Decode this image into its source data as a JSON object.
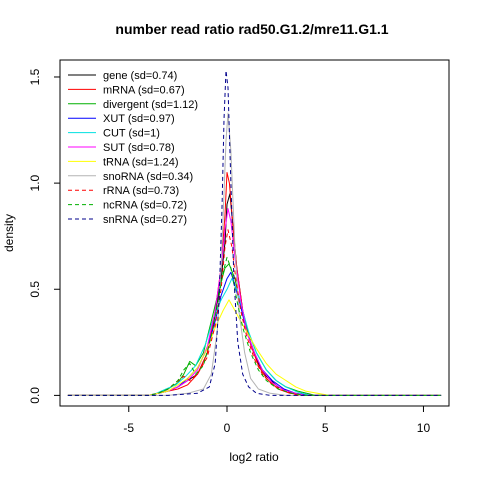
{
  "chart_data": {
    "type": "line",
    "title": "number read ratio rad50.G1.2/mre11.G1.1",
    "xlabel": "log2 ratio",
    "ylabel": "density",
    "xlim": [
      -8.5,
      11.3
    ],
    "ylim": [
      -0.05,
      1.58
    ],
    "x_ticks": [
      -5,
      0,
      5,
      10
    ],
    "x_tick_labels": [
      "-5",
      "0",
      "5",
      "10"
    ],
    "y_ticks": [
      0.0,
      0.5,
      1.0,
      1.5
    ],
    "y_tick_labels": [
      "0.0",
      "0.5",
      "1.0",
      "1.5"
    ],
    "grid": false,
    "legend_position": "top-left",
    "series": [
      {
        "name": "gene (sd=0.74)",
        "color": "#000000",
        "dash": "solid",
        "points": [
          [
            -8.1,
            0
          ],
          [
            -4,
            0
          ],
          [
            -3.5,
            0.01
          ],
          [
            -3,
            0.02
          ],
          [
            -2.5,
            0.04
          ],
          [
            -2,
            0.07
          ],
          [
            -1.5,
            0.1
          ],
          [
            -1,
            0.2
          ],
          [
            -0.6,
            0.38
          ],
          [
            -0.3,
            0.55
          ],
          [
            -0.1,
            0.72
          ],
          [
            0,
            0.9
          ],
          [
            0.15,
            0.95
          ],
          [
            0.3,
            0.8
          ],
          [
            0.5,
            0.6
          ],
          [
            0.8,
            0.4
          ],
          [
            1.2,
            0.25
          ],
          [
            1.6,
            0.15
          ],
          [
            2,
            0.09
          ],
          [
            2.6,
            0.04
          ],
          [
            3.2,
            0.015
          ],
          [
            4,
            0
          ],
          [
            10.9,
            0
          ]
        ]
      },
      {
        "name": "mRNA (sd=0.67)",
        "color": "#ff0000",
        "dash": "solid",
        "points": [
          [
            -8.1,
            0
          ],
          [
            -4,
            0
          ],
          [
            -3.5,
            0.01
          ],
          [
            -3,
            0.02
          ],
          [
            -2.5,
            0.03
          ],
          [
            -2,
            0.05
          ],
          [
            -1.5,
            0.1
          ],
          [
            -1,
            0.2
          ],
          [
            -0.6,
            0.4
          ],
          [
            -0.3,
            0.6
          ],
          [
            -0.1,
            0.85
          ],
          [
            0,
            1.05
          ],
          [
            0.12,
            1.0
          ],
          [
            0.3,
            0.8
          ],
          [
            0.5,
            0.6
          ],
          [
            0.8,
            0.4
          ],
          [
            1.2,
            0.24
          ],
          [
            1.6,
            0.14
          ],
          [
            2,
            0.08
          ],
          [
            2.6,
            0.03
          ],
          [
            3.2,
            0.01
          ],
          [
            4,
            0
          ],
          [
            10.9,
            0
          ]
        ]
      },
      {
        "name": "divergent (sd=1.12)",
        "color": "#00b000",
        "dash": "solid",
        "points": [
          [
            -8.1,
            0
          ],
          [
            -4,
            0
          ],
          [
            -3.5,
            0.01
          ],
          [
            -3,
            0.03
          ],
          [
            -2.5,
            0.06
          ],
          [
            -2.2,
            0.1
          ],
          [
            -1.9,
            0.16
          ],
          [
            -1.6,
            0.14
          ],
          [
            -1.2,
            0.2
          ],
          [
            -0.8,
            0.35
          ],
          [
            -0.4,
            0.5
          ],
          [
            -0.1,
            0.6
          ],
          [
            0.1,
            0.62
          ],
          [
            0.4,
            0.55
          ],
          [
            0.7,
            0.42
          ],
          [
            1,
            0.32
          ],
          [
            1.5,
            0.2
          ],
          [
            2,
            0.12
          ],
          [
            2.5,
            0.07
          ],
          [
            3,
            0.04
          ],
          [
            3.6,
            0.02
          ],
          [
            4.5,
            0
          ],
          [
            10.9,
            0
          ]
        ]
      },
      {
        "name": "XUT (sd=0.97)",
        "color": "#0000ff",
        "dash": "solid",
        "points": [
          [
            -8.1,
            0
          ],
          [
            -4,
            0
          ],
          [
            -3.5,
            0.01
          ],
          [
            -3,
            0.02
          ],
          [
            -2.5,
            0.04
          ],
          [
            -2,
            0.08
          ],
          [
            -1.5,
            0.13
          ],
          [
            -1,
            0.22
          ],
          [
            -0.6,
            0.35
          ],
          [
            -0.3,
            0.47
          ],
          [
            0,
            0.55
          ],
          [
            0.2,
            0.58
          ],
          [
            0.4,
            0.52
          ],
          [
            0.7,
            0.42
          ],
          [
            1,
            0.3
          ],
          [
            1.4,
            0.2
          ],
          [
            1.8,
            0.12
          ],
          [
            2.3,
            0.07
          ],
          [
            2.9,
            0.03
          ],
          [
            3.5,
            0.01
          ],
          [
            4.2,
            0
          ],
          [
            10.9,
            0
          ]
        ]
      },
      {
        "name": "CUT (sd=1)",
        "color": "#00e0e0",
        "dash": "solid",
        "points": [
          [
            -8.1,
            0
          ],
          [
            -4,
            0
          ],
          [
            -3.6,
            0.01
          ],
          [
            -3.1,
            0.03
          ],
          [
            -2.6,
            0.05
          ],
          [
            -2.1,
            0.09
          ],
          [
            -1.6,
            0.14
          ],
          [
            -1.1,
            0.24
          ],
          [
            -0.7,
            0.36
          ],
          [
            -0.3,
            0.45
          ],
          [
            0,
            0.5
          ],
          [
            0.25,
            0.55
          ],
          [
            0.5,
            0.5
          ],
          [
            0.8,
            0.4
          ],
          [
            1.1,
            0.3
          ],
          [
            1.5,
            0.2
          ],
          [
            2,
            0.12
          ],
          [
            2.5,
            0.07
          ],
          [
            3,
            0.04
          ],
          [
            3.6,
            0.015
          ],
          [
            4.3,
            0
          ],
          [
            10.9,
            0
          ]
        ]
      },
      {
        "name": "SUT (sd=0.78)",
        "color": "#ff00ff",
        "dash": "solid",
        "points": [
          [
            -8.1,
            0
          ],
          [
            -4,
            0
          ],
          [
            -3.5,
            0.01
          ],
          [
            -3,
            0.02
          ],
          [
            -2.5,
            0.04
          ],
          [
            -2,
            0.07
          ],
          [
            -1.5,
            0.12
          ],
          [
            -1,
            0.23
          ],
          [
            -0.6,
            0.4
          ],
          [
            -0.3,
            0.6
          ],
          [
            -0.1,
            0.78
          ],
          [
            0.05,
            0.88
          ],
          [
            0.2,
            0.82
          ],
          [
            0.4,
            0.65
          ],
          [
            0.7,
            0.45
          ],
          [
            1,
            0.3
          ],
          [
            1.4,
            0.2
          ],
          [
            1.8,
            0.12
          ],
          [
            2.3,
            0.06
          ],
          [
            2.9,
            0.025
          ],
          [
            3.5,
            0.01
          ],
          [
            4,
            0
          ],
          [
            10.9,
            0
          ]
        ]
      },
      {
        "name": "tRNA (sd=1.24)",
        "color": "#ffff00",
        "dash": "solid",
        "points": [
          [
            -8.1,
            0
          ],
          [
            -4,
            0
          ],
          [
            -3.5,
            0.01
          ],
          [
            -3,
            0.02
          ],
          [
            -2.5,
            0.05
          ],
          [
            -2,
            0.08
          ],
          [
            -1.5,
            0.13
          ],
          [
            -1,
            0.22
          ],
          [
            -0.6,
            0.32
          ],
          [
            -0.2,
            0.4
          ],
          [
            0.1,
            0.45
          ],
          [
            0.4,
            0.4
          ],
          [
            0.7,
            0.35
          ],
          [
            1,
            0.3
          ],
          [
            1.5,
            0.22
          ],
          [
            2,
            0.15
          ],
          [
            2.5,
            0.1
          ],
          [
            3,
            0.07
          ],
          [
            3.5,
            0.04
          ],
          [
            4,
            0.02
          ],
          [
            4.6,
            0.01
          ],
          [
            5.2,
            0
          ],
          [
            10.9,
            0
          ]
        ]
      },
      {
        "name": "snoRNA (sd=0.34)",
        "color": "#b3b3b3",
        "dash": "solid",
        "points": [
          [
            -8.1,
            0
          ],
          [
            -3,
            0
          ],
          [
            -2,
            0.01
          ],
          [
            -1.2,
            0.03
          ],
          [
            -0.8,
            0.1
          ],
          [
            -0.5,
            0.3
          ],
          [
            -0.3,
            0.6
          ],
          [
            -0.15,
            0.95
          ],
          [
            -0.05,
            1.2
          ],
          [
            0.05,
            1.33
          ],
          [
            0.2,
            1.15
          ],
          [
            0.4,
            0.7
          ],
          [
            0.6,
            0.4
          ],
          [
            0.9,
            0.2
          ],
          [
            1.2,
            0.08
          ],
          [
            1.6,
            0.03
          ],
          [
            2.2,
            0.01
          ],
          [
            3,
            0
          ],
          [
            10.9,
            0
          ]
        ]
      },
      {
        "name": "rRNA (sd=0.73)",
        "color": "#ff0000",
        "dash": "dashed",
        "points": [
          [
            -8.1,
            0
          ],
          [
            -4,
            0
          ],
          [
            -3.5,
            0.01
          ],
          [
            -3,
            0.03
          ],
          [
            -2.6,
            0.06
          ],
          [
            -2.2,
            0.09
          ],
          [
            -1.9,
            0.07
          ],
          [
            -1.5,
            0.1
          ],
          [
            -1,
            0.18
          ],
          [
            -0.6,
            0.33
          ],
          [
            -0.3,
            0.5
          ],
          [
            -0.1,
            0.7
          ],
          [
            0.05,
            0.78
          ],
          [
            0.25,
            0.7
          ],
          [
            0.45,
            0.55
          ],
          [
            0.7,
            0.4
          ],
          [
            1,
            0.28
          ],
          [
            1.4,
            0.17
          ],
          [
            1.8,
            0.1
          ],
          [
            2.3,
            0.05
          ],
          [
            2.9,
            0.02
          ],
          [
            3.6,
            0
          ],
          [
            10.9,
            0
          ]
        ]
      },
      {
        "name": "ncRNA (sd=0.72)",
        "color": "#00b000",
        "dash": "dashed",
        "points": [
          [
            -8.1,
            0
          ],
          [
            -4,
            0
          ],
          [
            -3.5,
            0.01
          ],
          [
            -3,
            0.03
          ],
          [
            -2.5,
            0.07
          ],
          [
            -2.2,
            0.12
          ],
          [
            -1.9,
            0.15
          ],
          [
            -1.6,
            0.1
          ],
          [
            -1.2,
            0.14
          ],
          [
            -0.8,
            0.28
          ],
          [
            -0.5,
            0.42
          ],
          [
            -0.2,
            0.58
          ],
          [
            0,
            0.65
          ],
          [
            0.2,
            0.6
          ],
          [
            0.5,
            0.45
          ],
          [
            0.8,
            0.32
          ],
          [
            1.2,
            0.2
          ],
          [
            1.6,
            0.12
          ],
          [
            2,
            0.07
          ],
          [
            2.6,
            0.03
          ],
          [
            3.3,
            0.01
          ],
          [
            4,
            0
          ],
          [
            10.9,
            0
          ]
        ]
      },
      {
        "name": "snRNA (sd=0.27)",
        "color": "#00008b",
        "dash": "dashed",
        "points": [
          [
            -8.1,
            0
          ],
          [
            -3,
            0
          ],
          [
            -1.5,
            0.01
          ],
          [
            -0.9,
            0.04
          ],
          [
            -0.6,
            0.15
          ],
          [
            -0.4,
            0.45
          ],
          [
            -0.25,
            0.9
          ],
          [
            -0.15,
            1.3
          ],
          [
            -0.05,
            1.53
          ],
          [
            0.05,
            1.45
          ],
          [
            0.2,
            1.0
          ],
          [
            0.35,
            0.55
          ],
          [
            0.55,
            0.25
          ],
          [
            0.8,
            0.1
          ],
          [
            1.1,
            0.04
          ],
          [
            1.5,
            0.01
          ],
          [
            2.2,
            0
          ],
          [
            10.9,
            0
          ]
        ]
      }
    ]
  }
}
